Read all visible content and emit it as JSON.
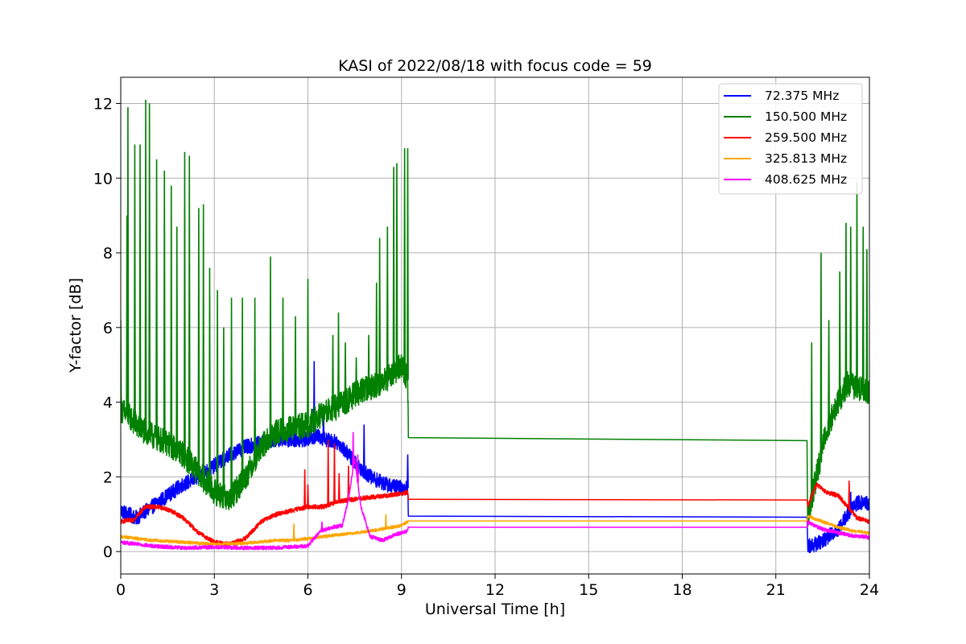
{
  "chart_data": {
    "type": "line",
    "title": "KASI of 2022/08/18 with focus code = 59",
    "xlabel": "Universal Time [h]",
    "ylabel": "Y-factor [dB]",
    "xlim": [
      0,
      24
    ],
    "ylim": [
      -0.6,
      12.7
    ],
    "xticks": [
      0,
      3,
      6,
      9,
      12,
      15,
      18,
      21,
      24
    ],
    "xtick_labels": [
      "0",
      "3",
      "6",
      "9",
      "12",
      "15",
      "18",
      "21",
      "24"
    ],
    "yticks": [
      0,
      2,
      4,
      6,
      8,
      10,
      12
    ],
    "ytick_labels": [
      "0",
      "2",
      "4",
      "6",
      "8",
      "10",
      "12"
    ],
    "grid": true,
    "legend_position": "top-right",
    "series": [
      {
        "name": " 72.375 MHz",
        "color": "#0000ff",
        "noise": 0.2,
        "x": [
          0,
          0.5,
          1,
          1.5,
          2,
          2.5,
          3,
          3.5,
          4,
          4.5,
          5,
          5.5,
          6,
          6.3,
          6.6,
          7,
          7.3,
          7.6,
          8,
          8.5,
          9,
          9.2,
          9.22,
          22.0,
          22.02,
          22.3,
          22.6,
          23,
          23.3,
          23.6,
          24
        ],
        "y": [
          1.1,
          0.9,
          1.2,
          1.5,
          1.8,
          2.0,
          2.3,
          2.6,
          2.8,
          2.9,
          3.0,
          3.0,
          3.0,
          3.1,
          3.0,
          2.9,
          2.6,
          2.3,
          2.0,
          1.8,
          1.7,
          1.7,
          0.95,
          0.92,
          0.15,
          0.2,
          0.35,
          0.6,
          1.0,
          1.3,
          1.3
        ],
        "spikes": [
          [
            4.8,
            3.7
          ],
          [
            6.2,
            5.1
          ],
          [
            6.5,
            3.9
          ],
          [
            7.8,
            3.4
          ],
          [
            9.2,
            2.6
          ],
          [
            23.4,
            1.6
          ]
        ]
      },
      {
        "name": "150.500 MHz",
        "color": "#008000",
        "noise": 0.35,
        "x": [
          0,
          0.3,
          0.6,
          1,
          1.5,
          2,
          2.5,
          3,
          3.5,
          4,
          4.5,
          5,
          5.5,
          6,
          6.5,
          7,
          7.5,
          8,
          8.5,
          9,
          9.2,
          9.22,
          22.0,
          22.02,
          22.3,
          22.6,
          23,
          23.3,
          23.6,
          24
        ],
        "y": [
          3.8,
          3.6,
          3.3,
          3.1,
          2.9,
          2.6,
          2.1,
          1.6,
          1.4,
          2.0,
          2.8,
          3.2,
          3.3,
          3.4,
          3.7,
          3.9,
          4.2,
          4.4,
          4.6,
          5.0,
          4.6,
          3.05,
          2.97,
          0.9,
          2.0,
          3.2,
          4.0,
          4.5,
          4.4,
          4.3
        ],
        "spikes": [
          [
            0.0,
            6.2
          ],
          [
            0.2,
            9.0
          ],
          [
            0.23,
            11.9
          ],
          [
            0.45,
            10.9
          ],
          [
            0.62,
            10.9
          ],
          [
            0.8,
            12.1
          ],
          [
            0.92,
            12.0
          ],
          [
            1.15,
            10.5
          ],
          [
            1.4,
            10.2
          ],
          [
            1.62,
            9.8
          ],
          [
            1.8,
            8.7
          ],
          [
            2.05,
            10.7
          ],
          [
            2.2,
            10.6
          ],
          [
            2.5,
            9.2
          ],
          [
            2.65,
            9.3
          ],
          [
            2.85,
            7.6
          ],
          [
            3.1,
            7.0
          ],
          [
            3.3,
            6.0
          ],
          [
            3.55,
            6.8
          ],
          [
            3.9,
            6.8
          ],
          [
            4.3,
            6.8
          ],
          [
            4.8,
            7.9
          ],
          [
            5.2,
            6.8
          ],
          [
            5.6,
            6.3
          ],
          [
            6.0,
            7.3
          ],
          [
            6.8,
            5.8
          ],
          [
            6.98,
            6.4
          ],
          [
            7.2,
            5.6
          ],
          [
            7.55,
            5.2
          ],
          [
            7.95,
            5.8
          ],
          [
            8.2,
            7.2
          ],
          [
            8.3,
            8.4
          ],
          [
            8.55,
            8.7
          ],
          [
            8.75,
            10.3
          ],
          [
            8.85,
            10.4
          ],
          [
            9.1,
            10.8
          ],
          [
            9.2,
            10.8
          ],
          [
            22.15,
            5.6
          ],
          [
            22.45,
            8.0
          ],
          [
            22.7,
            6.2
          ],
          [
            23.05,
            7.5
          ],
          [
            23.25,
            8.8
          ],
          [
            23.4,
            8.7
          ],
          [
            23.6,
            9.9
          ],
          [
            23.8,
            8.7
          ],
          [
            23.92,
            8.1
          ]
        ]
      },
      {
        "name": "259.500 MHz",
        "color": "#ff0000",
        "noise": 0.06,
        "x": [
          0,
          0.4,
          0.8,
          1.2,
          1.6,
          2,
          2.5,
          3,
          3.5,
          4,
          4.5,
          5,
          5.5,
          6,
          6.5,
          7,
          7.5,
          8,
          8.5,
          9,
          9.2,
          9.22,
          22.0,
          22.02,
          22.3,
          22.6,
          23,
          23.3,
          23.6,
          24
        ],
        "y": [
          0.8,
          0.85,
          1.2,
          1.2,
          1.1,
          0.9,
          0.5,
          0.25,
          0.2,
          0.35,
          0.8,
          1.0,
          1.1,
          1.2,
          1.2,
          1.35,
          1.4,
          1.45,
          1.5,
          1.55,
          1.6,
          1.4,
          1.38,
          1.2,
          1.8,
          1.6,
          1.5,
          1.2,
          0.9,
          0.8
        ],
        "spikes": [
          [
            5.9,
            2.2
          ],
          [
            6.0,
            1.8
          ],
          [
            6.65,
            3.0
          ],
          [
            6.85,
            2.9
          ],
          [
            7.0,
            2.1
          ],
          [
            7.3,
            2.3
          ],
          [
            23.35,
            1.9
          ]
        ]
      },
      {
        "name": "325.813 MHz",
        "color": "#ffa500",
        "noise": 0.04,
        "x": [
          0,
          1,
          2,
          3,
          4,
          5,
          5.5,
          6,
          6.5,
          7,
          7.5,
          8,
          8.5,
          9,
          9.2,
          9.22,
          22.0,
          22.02,
          22.5,
          23,
          23.5,
          24
        ],
        "y": [
          0.4,
          0.3,
          0.25,
          0.2,
          0.22,
          0.3,
          0.3,
          0.35,
          0.4,
          0.45,
          0.5,
          0.55,
          0.62,
          0.7,
          0.8,
          0.82,
          0.82,
          0.95,
          0.8,
          0.65,
          0.55,
          0.5
        ],
        "spikes": [
          [
            5.55,
            0.75
          ],
          [
            8.5,
            1.0
          ]
        ]
      },
      {
        "name": "408.625 MHz",
        "color": "#ff00ff",
        "noise": 0.05,
        "x": [
          0,
          1,
          2,
          3,
          4,
          5,
          6,
          6.4,
          6.8,
          7.1,
          7.3,
          7.5,
          7.7,
          8.0,
          8.4,
          8.8,
          9.2,
          9.22,
          22.0,
          22.02,
          22.5,
          23,
          23.5,
          24
        ],
        "y": [
          0.25,
          0.15,
          0.1,
          0.12,
          0.1,
          0.1,
          0.15,
          0.55,
          0.65,
          0.7,
          1.4,
          2.5,
          1.2,
          0.4,
          0.3,
          0.45,
          0.55,
          0.65,
          0.65,
          0.78,
          0.6,
          0.5,
          0.42,
          0.38
        ],
        "spikes": [
          [
            7.45,
            3.2
          ],
          [
            7.6,
            2.6
          ],
          [
            6.45,
            0.8
          ]
        ]
      }
    ]
  }
}
